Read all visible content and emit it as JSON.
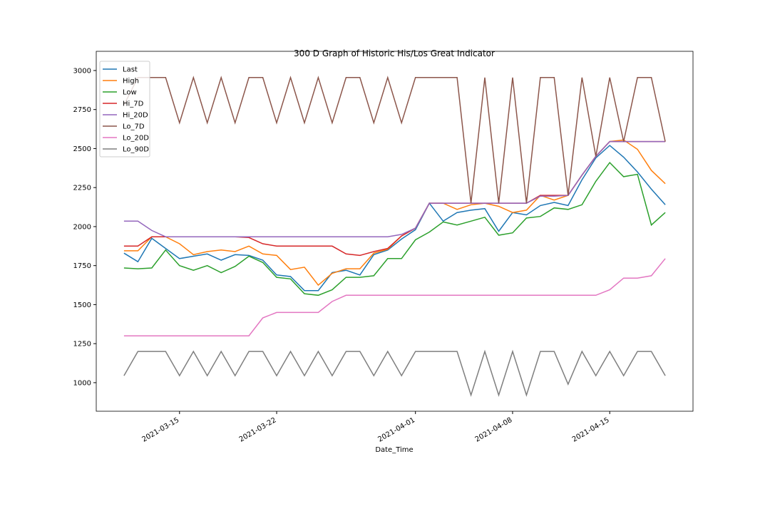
{
  "chart_data": {
    "type": "line",
    "title": "300 D Graph of Historic His/Los Great Indicator",
    "xlabel": "Date_Time",
    "x": [
      "2021-03-11",
      "2021-03-12",
      "2021-03-13",
      "2021-03-14",
      "2021-03-15",
      "2021-03-16",
      "2021-03-17",
      "2021-03-18",
      "2021-03-19",
      "2021-03-20",
      "2021-03-21",
      "2021-03-22",
      "2021-03-23",
      "2021-03-24",
      "2021-03-25",
      "2021-03-26",
      "2021-03-27",
      "2021-03-28",
      "2021-03-29",
      "2021-03-30",
      "2021-03-31",
      "2021-04-01",
      "2021-04-02",
      "2021-04-03",
      "2021-04-04",
      "2021-04-05",
      "2021-04-06",
      "2021-04-07",
      "2021-04-08",
      "2021-04-09",
      "2021-04-10",
      "2021-04-11",
      "2021-04-12",
      "2021-04-13",
      "2021-04-14",
      "2021-04-15",
      "2021-04-16",
      "2021-04-17",
      "2021-04-18",
      "2021-04-19"
    ],
    "xlim": [
      "2021-03-09",
      "2021-04-21"
    ],
    "xticks": [
      "2021-03-15",
      "2021-03-22",
      "2021-04-01",
      "2021-04-08",
      "2021-04-15"
    ],
    "ylim": [
      817,
      3123
    ],
    "yticks": [
      1000,
      1250,
      1500,
      1750,
      2000,
      2250,
      2500,
      2750,
      3000
    ],
    "legend": "upper left",
    "series": [
      {
        "name": "Last",
        "color": "#1f77b4",
        "values": [
          1830,
          1775,
          1925,
          1860,
          1795,
          1810,
          1825,
          1785,
          1820,
          1815,
          1785,
          1690,
          1680,
          1590,
          1590,
          1705,
          1720,
          1690,
          1820,
          1850,
          1920,
          1980,
          2150,
          2035,
          2090,
          2105,
          2115,
          1970,
          2090,
          2075,
          2135,
          2155,
          2135,
          2300,
          2440,
          2520,
          2445,
          2350,
          2240,
          2140
        ]
      },
      {
        "name": "High",
        "color": "#ff7f0e",
        "values": [
          1845,
          1845,
          1935,
          1935,
          1890,
          1820,
          1840,
          1850,
          1840,
          1875,
          1825,
          1815,
          1725,
          1740,
          1625,
          1700,
          1730,
          1730,
          1830,
          1855,
          1940,
          1990,
          2150,
          2150,
          2110,
          2140,
          2150,
          2130,
          2090,
          2105,
          2200,
          2170,
          2200,
          2330,
          2450,
          2545,
          2555,
          2495,
          2360,
          2275
        ]
      },
      {
        "name": "Low",
        "color": "#2ca02c",
        "values": [
          1735,
          1730,
          1735,
          1850,
          1750,
          1720,
          1750,
          1705,
          1745,
          1810,
          1770,
          1675,
          1665,
          1570,
          1560,
          1595,
          1675,
          1675,
          1685,
          1795,
          1795,
          1915,
          1965,
          2030,
          2010,
          2035,
          2060,
          1945,
          1960,
          2055,
          2065,
          2120,
          2110,
          2140,
          2290,
          2410,
          2320,
          2335,
          2010,
          2090
        ]
      },
      {
        "name": "Hi_7D",
        "color": "#d62728",
        "values": [
          1875,
          1875,
          1935,
          1935,
          1935,
          1935,
          1935,
          1935,
          1935,
          1930,
          1890,
          1875,
          1875,
          1875,
          1875,
          1875,
          1825,
          1815,
          1840,
          1860,
          1940,
          1990,
          2150,
          2150,
          2150,
          2150,
          2150,
          2150,
          2150,
          2150,
          2200,
          2200,
          2200,
          2330,
          2450,
          2545,
          2545,
          2545,
          2545,
          2545
        ]
      },
      {
        "name": "Hi_20D",
        "color": "#9467bd",
        "values": [
          2035,
          2035,
          1975,
          1935,
          1935,
          1935,
          1935,
          1935,
          1935,
          1935,
          1935,
          1935,
          1935,
          1935,
          1935,
          1935,
          1935,
          1935,
          1935,
          1935,
          1950,
          1990,
          2150,
          2150,
          2150,
          2150,
          2150,
          2150,
          2150,
          2150,
          2195,
          2195,
          2200,
          2330,
          2450,
          2545,
          2545,
          2545,
          2545,
          2545
        ]
      },
      {
        "name": "Lo_7D",
        "color": "#8c564b",
        "values": [
          2780,
          2955,
          2955,
          2955,
          2665,
          2955,
          2665,
          2955,
          2665,
          2955,
          2955,
          2665,
          2955,
          2665,
          2955,
          2665,
          2955,
          2955,
          2665,
          2955,
          2665,
          2955,
          2955,
          2955,
          2955,
          2150,
          2955,
          2150,
          2955,
          2150,
          2955,
          2955,
          2200,
          2955,
          2450,
          2955,
          2545,
          2955,
          2955,
          2545
        ]
      },
      {
        "name": "Lo_20D",
        "color": "#e377c2",
        "values": [
          1300,
          1300,
          1300,
          1300,
          1300,
          1300,
          1300,
          1300,
          1300,
          1300,
          1415,
          1450,
          1450,
          1450,
          1450,
          1520,
          1560,
          1560,
          1560,
          1560,
          1560,
          1560,
          1560,
          1560,
          1560,
          1560,
          1560,
          1560,
          1560,
          1560,
          1560,
          1560,
          1560,
          1560,
          1560,
          1595,
          1670,
          1670,
          1685,
          1795
        ]
      },
      {
        "name": "Lo_90D",
        "color": "#7f7f7f",
        "values": [
          1045,
          1200,
          1200,
          1200,
          1045,
          1200,
          1045,
          1200,
          1045,
          1200,
          1200,
          1045,
          1200,
          1045,
          1200,
          1045,
          1200,
          1200,
          1045,
          1200,
          1045,
          1200,
          1200,
          1200,
          1200,
          920,
          1200,
          920,
          1200,
          920,
          1200,
          1200,
          990,
          1200,
          1045,
          1200,
          1045,
          1200,
          1200,
          1045
        ]
      }
    ]
  }
}
